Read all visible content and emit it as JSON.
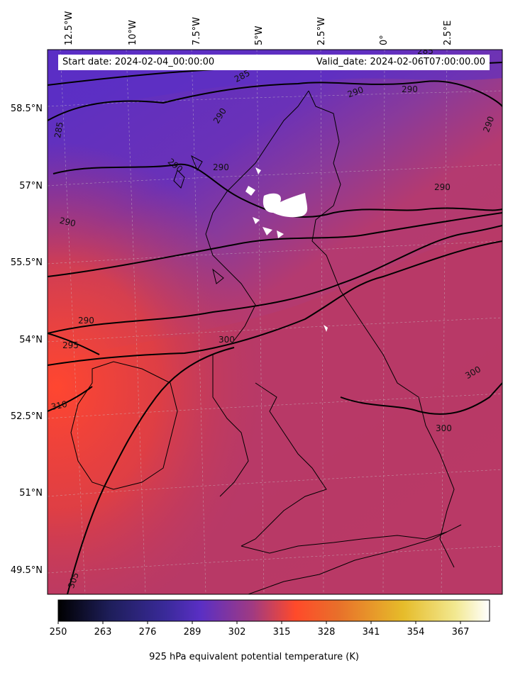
{
  "map": {
    "variable_label": "925 hPa equivalent potential temperature (K)",
    "start_date": "Start date: 2024-02-04_00:00:00",
    "valid_date": "Valid_date: 2024-02-06T07:00:00.00",
    "lon_ticks": [
      "12.5°W",
      "10°W",
      "7.5°W",
      "5°W",
      "2.5°W",
      "0°",
      "2.5°E"
    ],
    "lat_ticks": [
      "58.5°N",
      "57°N",
      "55.5°N",
      "54°N",
      "52.5°N",
      "51°N",
      "49.5°N"
    ],
    "contour_labels": [
      "285",
      "285",
      "285",
      "290",
      "290",
      "290",
      "290",
      "290",
      "290",
      "290",
      "290",
      "290",
      "295",
      "300",
      "300",
      "300",
      "310",
      "305"
    ],
    "colorbar": {
      "ticks": [
        "250",
        "263",
        "276",
        "289",
        "302",
        "315",
        "328",
        "341",
        "354",
        "367"
      ],
      "colormap": "CMRmap-like",
      "colors": [
        "#000000",
        "#2a2a7a",
        "#5a2fc4",
        "#7a3ab0",
        "#a03a82",
        "#ff4a2a",
        "#e0862a",
        "#e6c02a",
        "#f2e880",
        "#ffffff"
      ]
    },
    "colors": {
      "cold": "#5a2fc4",
      "mid": "#7a3aa8",
      "warm": "#c03a5c",
      "hot": "#f0402e"
    }
  }
}
